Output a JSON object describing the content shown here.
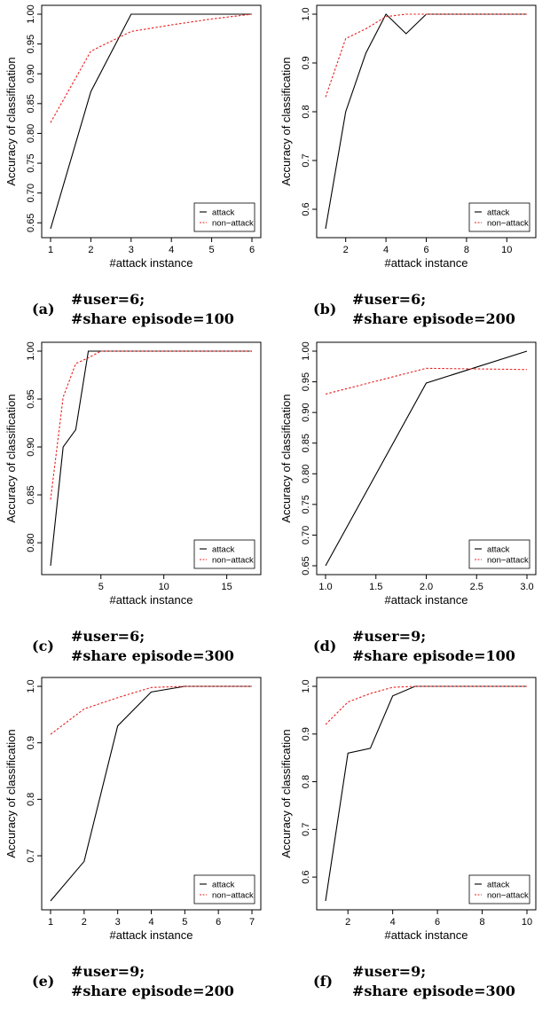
{
  "panels": [
    {
      "letter": "(a)",
      "caption_line1": "#user=6;",
      "caption_line2": "#share episode=100",
      "chart_data": {
        "type": "line",
        "xlabel": "#attack instance",
        "ylabel": "Accuracy of classification",
        "xlim": [
          1,
          6
        ],
        "ylim": [
          0.64,
          1.0
        ],
        "xticks": [
          1,
          2,
          3,
          4,
          5,
          6
        ],
        "yticks": [
          0.65,
          0.7,
          0.75,
          0.8,
          0.85,
          0.9,
          0.95,
          1.0
        ],
        "ytick_labels": [
          "0.65",
          "0.70",
          "0.75",
          "0.80",
          "0.85",
          "0.90",
          "0.95",
          "1.00"
        ],
        "legend_position": "bottom-right",
        "series": [
          {
            "name": "attack",
            "color": "#000000",
            "style": "solid",
            "x": [
              1,
              2,
              3,
              4,
              5,
              6
            ],
            "y": [
              0.64,
              0.87,
              1.0,
              1.0,
              1.0,
              1.0
            ]
          },
          {
            "name": "non−attack",
            "color": "#e8201e",
            "style": "dashed",
            "x": [
              1,
              2,
              3,
              4,
              5,
              6
            ],
            "y": [
              0.818,
              0.938,
              0.971,
              0.982,
              0.992,
              1.0
            ]
          }
        ]
      }
    },
    {
      "letter": "(b)",
      "caption_line1": "#user=6;",
      "caption_line2": "#share episode=200",
      "chart_data": {
        "type": "line",
        "xlabel": "#attack instance",
        "ylabel": "Accuracy of classification",
        "xlim": [
          1,
          11
        ],
        "ylim": [
          0.56,
          1.0
        ],
        "xticks": [
          2,
          4,
          6,
          8,
          10
        ],
        "yticks": [
          0.6,
          0.7,
          0.8,
          0.9,
          1.0
        ],
        "ytick_labels": [
          "0.6",
          "0.7",
          "0.8",
          "0.9",
          "1.0"
        ],
        "legend_position": "bottom-right",
        "series": [
          {
            "name": "attack",
            "color": "#000000",
            "style": "solid",
            "x": [
              1,
              2,
              3,
              4,
              5,
              6,
              7,
              8,
              9,
              10,
              11
            ],
            "y": [
              0.56,
              0.8,
              0.92,
              1.0,
              0.96,
              1.0,
              1.0,
              1.0,
              1.0,
              1.0,
              1.0
            ]
          },
          {
            "name": "non−attack",
            "color": "#e8201e",
            "style": "dashed",
            "x": [
              1,
              2,
              3,
              4,
              5,
              6,
              7,
              8,
              9,
              10,
              11
            ],
            "y": [
              0.83,
              0.95,
              0.97,
              0.995,
              1.0,
              1.0,
              1.0,
              1.0,
              1.0,
              1.0,
              1.0
            ]
          }
        ]
      }
    },
    {
      "letter": "(c)",
      "caption_line1": "#user=6;",
      "caption_line2": "#share episode=300",
      "chart_data": {
        "type": "line",
        "xlabel": "#attack instance",
        "ylabel": "Accuracy of classification",
        "xlim": [
          1,
          17
        ],
        "ylim": [
          0.776,
          1.0
        ],
        "xticks": [
          5,
          10,
          15
        ],
        "yticks": [
          0.8,
          0.85,
          0.9,
          0.95,
          1.0
        ],
        "ytick_labels": [
          "0.80",
          "0.85",
          "0.90",
          "0.95",
          "1.00"
        ],
        "legend_position": "bottom-right",
        "series": [
          {
            "name": "attack",
            "color": "#000000",
            "style": "solid",
            "x": [
              1,
              2,
              3,
              4,
              5,
              17
            ],
            "y": [
              0.776,
              0.9,
              0.918,
              1.0,
              1.0,
              1.0
            ]
          },
          {
            "name": "non−attack",
            "color": "#e8201e",
            "style": "dashed",
            "x": [
              1,
              2,
              3,
              4,
              5,
              17
            ],
            "y": [
              0.845,
              0.952,
              0.987,
              0.993,
              1.0,
              1.0
            ]
          }
        ]
      }
    },
    {
      "letter": "(d)",
      "caption_line1": "#user=9;",
      "caption_line2": "#share episode=100",
      "chart_data": {
        "type": "line",
        "xlabel": "#attack instance",
        "ylabel": "Accuracy of classification",
        "xlim": [
          1,
          3
        ],
        "ylim": [
          0.65,
          1.0
        ],
        "xticks": [
          1.0,
          1.5,
          2.0,
          2.5,
          3.0
        ],
        "xtick_labels": [
          "1.0",
          "1.5",
          "2.0",
          "2.5",
          "3.0"
        ],
        "yticks": [
          0.65,
          0.7,
          0.75,
          0.8,
          0.85,
          0.9,
          0.95,
          1.0
        ],
        "ytick_labels": [
          "0.65",
          "0.70",
          "0.75",
          "0.80",
          "0.85",
          "0.90",
          "0.95",
          "1.00"
        ],
        "legend_position": "bottom-right",
        "series": [
          {
            "name": "attack",
            "color": "#000000",
            "style": "solid",
            "x": [
              1,
              2,
              3
            ],
            "y": [
              0.65,
              0.948,
              1.0
            ]
          },
          {
            "name": "non−attack",
            "color": "#e8201e",
            "style": "dashed",
            "x": [
              1,
              2,
              3
            ],
            "y": [
              0.93,
              0.972,
              0.97
            ]
          }
        ]
      }
    },
    {
      "letter": "(e)",
      "caption_line1": "#user=9;",
      "caption_line2": "#share episode=200",
      "chart_data": {
        "type": "line",
        "xlabel": "#attack instance",
        "ylabel": "Accuracy of classification",
        "xlim": [
          1,
          7
        ],
        "ylim": [
          0.62,
          1.0
        ],
        "xticks": [
          1,
          2,
          3,
          4,
          5,
          6,
          7
        ],
        "yticks": [
          0.7,
          0.8,
          0.9,
          1.0
        ],
        "ytick_labels": [
          "0.7",
          "0.8",
          "0.9",
          "1.0"
        ],
        "legend_position": "bottom-right",
        "series": [
          {
            "name": "attack",
            "color": "#000000",
            "style": "solid",
            "x": [
              1,
              2,
              3,
              4,
              5,
              6,
              7
            ],
            "y": [
              0.62,
              0.69,
              0.93,
              0.99,
              1.0,
              1.0,
              1.0
            ]
          },
          {
            "name": "non−attack",
            "color": "#e8201e",
            "style": "dashed",
            "x": [
              1,
              2,
              3,
              4,
              5,
              6,
              7
            ],
            "y": [
              0.915,
              0.96,
              0.98,
              0.998,
              1.0,
              1.0,
              1.0
            ]
          }
        ]
      }
    },
    {
      "letter": "(f)",
      "caption_line1": "#user=9;",
      "caption_line2": "#share episode=300",
      "chart_data": {
        "type": "line",
        "xlabel": "#attack instance",
        "ylabel": "Accuracy of classification",
        "xlim": [
          1,
          10
        ],
        "ylim": [
          0.55,
          1.0
        ],
        "xticks": [
          2,
          4,
          6,
          8,
          10
        ],
        "yticks": [
          0.6,
          0.7,
          0.8,
          0.9,
          1.0
        ],
        "ytick_labels": [
          "0.6",
          "0.7",
          "0.8",
          "0.9",
          "1.0"
        ],
        "legend_position": "bottom-right",
        "series": [
          {
            "name": "attack",
            "color": "#000000",
            "style": "solid",
            "x": [
              1,
              2,
              3,
              4,
              5,
              6,
              7,
              8,
              9,
              10
            ],
            "y": [
              0.55,
              0.86,
              0.87,
              0.98,
              1.0,
              1.0,
              1.0,
              1.0,
              1.0,
              1.0
            ]
          },
          {
            "name": "non−attack",
            "color": "#e8201e",
            "style": "dashed",
            "x": [
              1,
              2,
              3,
              4,
              5,
              6,
              7,
              8,
              9,
              10
            ],
            "y": [
              0.92,
              0.967,
              0.985,
              0.998,
              1.0,
              1.0,
              1.0,
              1.0,
              1.0,
              1.0
            ]
          }
        ]
      }
    }
  ]
}
